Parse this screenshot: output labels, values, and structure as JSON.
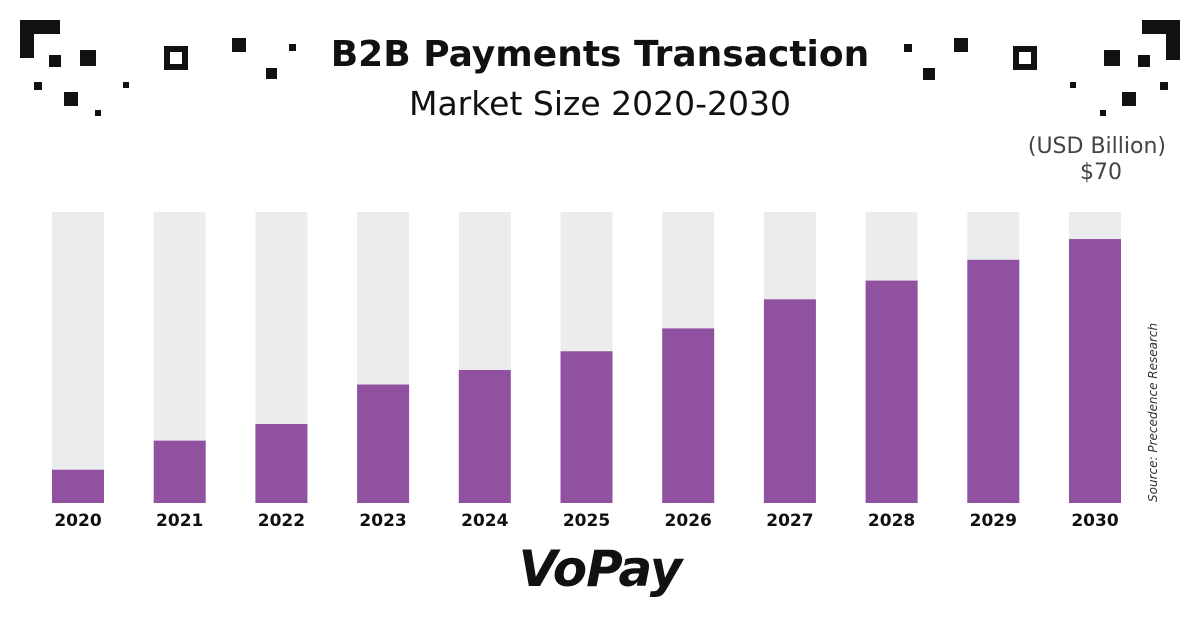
{
  "title": "B2B Payments Transaction",
  "subtitle": "Market Size 2020-2030",
  "unit_label": "(USD Billion)",
  "max_label": "$70",
  "source": "Source: Precedence Research",
  "brand": "VoPay",
  "colors": {
    "bar": "#9051a0",
    "track": "#ebecee",
    "text": "#111111"
  },
  "chart_data": {
    "type": "bar",
    "categories": [
      "2020",
      "2021",
      "2022",
      "2023",
      "2024",
      "2025",
      "2026",
      "2027",
      "2028",
      "2029",
      "2030"
    ],
    "values": [
      8,
      15,
      19,
      28.5,
      32,
      36.5,
      42,
      49,
      53.5,
      58.5,
      63.5
    ],
    "ylim": [
      0,
      70
    ],
    "title": "B2B Payments Transaction",
    "subtitle": "Market Size 2020-2030",
    "xlabel": "",
    "ylabel": "",
    "grid": false,
    "legend": "none"
  }
}
